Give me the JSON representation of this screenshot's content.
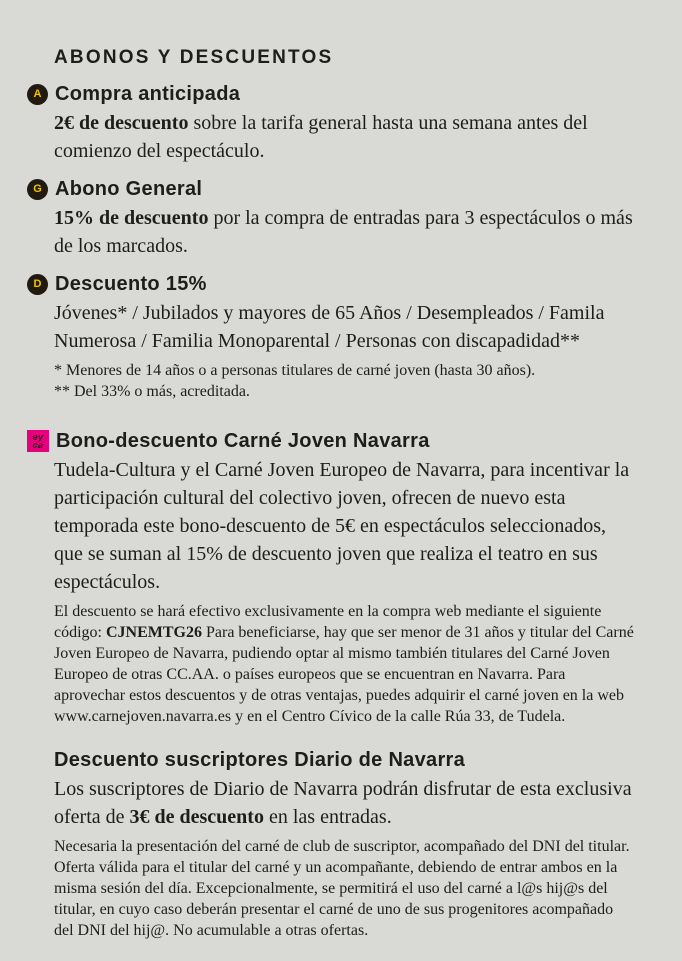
{
  "page": {
    "title": "ABONOS Y DESCUENTOS"
  },
  "colors": {
    "background": "#d9d9d6",
    "text": "#1d1d1b",
    "badge_background": "#211a11",
    "badge_letter_yellow": "#f0c300",
    "eyca_magenta": "#e5007d"
  },
  "sections": {
    "compra_anticipada": {
      "badge_letter": "A",
      "heading": "Compra anticipada",
      "body_bold": "2€ de descuento",
      "body_rest": " sobre la tarifa general hasta una semana antes del comienzo del espectáculo."
    },
    "abono_general": {
      "badge_letter": "G",
      "heading": "Abono General",
      "body_bold": "15% de descuento",
      "body_rest": " por la compra de entradas para 3 espectáculos o más de los marcados."
    },
    "descuento_15": {
      "badge_letter": "D",
      "heading": "Descuento 15%",
      "body": "Jóvenes* / Jubilados y mayores de 65 Años / Desempleados / Famila Numerosa / Familia Monoparental / Personas con discapadidad**",
      "notes": [
        "* Menores de 14 años o a personas titulares de carné joven (hasta 30 años).",
        "** Del 33% o más, acreditada."
      ]
    },
    "bono_carne_joven": {
      "eyca_line1": "ey",
      "eyca_line2": "ca",
      "heading": "Bono-descuento Carné Joven Navarra",
      "body": "Tudela-Cultura y el Carné Joven Europeo de Navarra, para incentivar la participación cultural del colectivo joven, ofrecen de nuevo esta temporada este bono-descuento de 5€ en espectáculos seleccionados, que se suman al 15% de descuento joven que realiza el teatro en sus espectáculos.",
      "small_pre": "El descuento se hará efectivo exclusivamente en la compra web mediante el siguiente código: ",
      "small_code": "CJNEMTG26",
      "small_post": "  Para beneficiarse, hay que ser menor de 31 años y titular del Carné Joven Europeo de Navarra, pudiendo optar al mismo también titulares del Carné Joven Europeo de otras CC.AA. o países europeos que se encuentran en Navarra.  Para aprovechar estos descuentos y de otras ventajas, puedes adquirir el carné joven en la web www.carnejoven.navarra.es y en el Centro Cívico de la calle Rúa 33, de Tudela."
    },
    "diario_navarra": {
      "heading": "Descuento suscriptores Diario de Navarra",
      "body_pre": "Los suscriptores de Diario de Navarra podrán disfrutar de esta exclusiva oferta de ",
      "body_bold": "3€ de descuento",
      "body_post": " en las entradas.",
      "small": "Necesaria la presentación del carné de club de suscriptor, acompañado del DNI del titular. Oferta válida para el titular del carné y un acompañante, debiendo de entrar ambos en la misma sesión del día. Excepcionalmente, se permitirá el uso del carné a l@s hij@s del titular, en cuyo caso deberán presentar el carné de uno de sus progenitores acompañado del DNI del hij@. No acumulable a otras ofertas."
    }
  }
}
